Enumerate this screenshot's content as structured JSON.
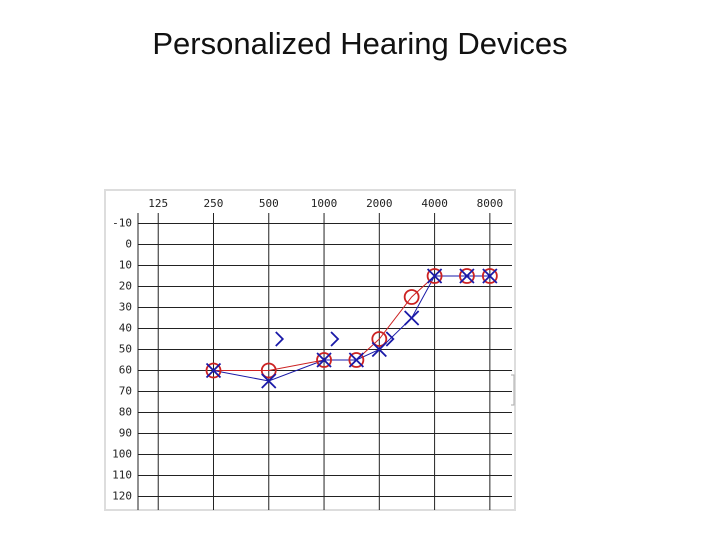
{
  "chart_data": {
    "type": "line",
    "title": "Personalized Hearing Devices",
    "log_x": true,
    "y_inverted": true,
    "grid": true,
    "xlim": [
      97,
      10560
    ],
    "xticks": [
      125,
      250,
      500,
      1000,
      2000,
      4000,
      8000
    ],
    "ylim": [
      -15,
      125
    ],
    "yticks": [
      -10,
      0,
      10,
      20,
      30,
      40,
      50,
      60,
      70,
      80,
      90,
      100,
      110,
      120
    ],
    "series": [
      {
        "color": "#cc2222",
        "marker": "o",
        "line": true,
        "x": [
          250,
          500,
          1000,
          1500,
          2000,
          3000,
          4000,
          6000,
          8000
        ],
        "values": [
          60,
          60,
          55,
          55,
          45,
          25,
          15,
          15,
          15
        ]
      },
      {
        "color": "#1a1aa8",
        "marker": "x",
        "line": true,
        "x": [
          250,
          500,
          1000,
          1500,
          2000,
          3000,
          4000,
          6000,
          8000
        ],
        "values": [
          60,
          65,
          55,
          55,
          50,
          35,
          15,
          15,
          15
        ]
      },
      {
        "color": "#1a1aa8",
        "marker": ">",
        "line": false,
        "x": [
          500,
          1000,
          2000
        ],
        "values": [
          45,
          45,
          45
        ]
      }
    ]
  }
}
